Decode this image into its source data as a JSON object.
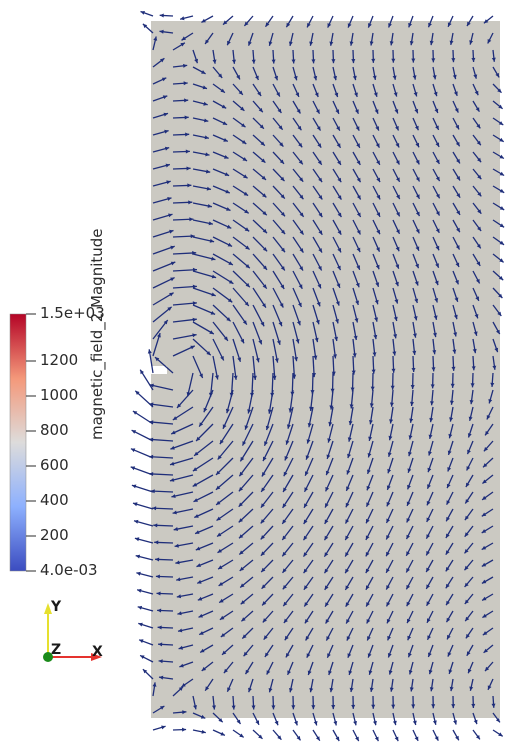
{
  "colorbar": {
    "title": "magnetic_field_2 Magnitude",
    "tick_labels": [
      "1.5e+03",
      "1200",
      "1000",
      "800",
      "600",
      "400",
      "200",
      "4.0e-03"
    ],
    "tick_values": [
      1500,
      1200,
      1000,
      800,
      600,
      400,
      200,
      0.004
    ],
    "range": [
      0.004,
      1500
    ],
    "colors": {
      "high": "#b2182b",
      "mid": "#dddcdb",
      "low": "#3b4cc0"
    }
  },
  "orientation_axes": {
    "x_label": "X",
    "y_label": "Y",
    "z_label": "Z",
    "x_color": "#e5322e",
    "y_color": "#e6e02e",
    "z_color": "#1a8a1a"
  },
  "scene": {
    "background_color": "#ffffff",
    "domain_color": "#cbc9c2",
    "glyph_color": "#1f2e7a",
    "glyph_type": "arrow-icon"
  }
}
